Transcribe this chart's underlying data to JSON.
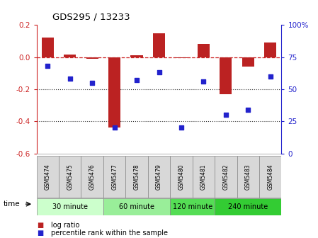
{
  "title": "GDS295 / 13233",
  "samples": [
    "GSM5474",
    "GSM5475",
    "GSM5476",
    "GSM5477",
    "GSM5478",
    "GSM5479",
    "GSM5480",
    "GSM5481",
    "GSM5482",
    "GSM5483",
    "GSM5484"
  ],
  "log_ratio": [
    0.12,
    0.015,
    -0.01,
    -0.44,
    0.01,
    0.15,
    -0.005,
    0.08,
    -0.23,
    -0.06,
    0.09
  ],
  "percentile": [
    68,
    58,
    55,
    20,
    57,
    63,
    20,
    56,
    30,
    34,
    60
  ],
  "bar_color": "#bb2222",
  "dot_color": "#2222cc",
  "ylim_left": [
    -0.6,
    0.2
  ],
  "ylim_right": [
    0,
    100
  ],
  "yticks_left": [
    -0.6,
    -0.4,
    -0.2,
    0.0,
    0.2
  ],
  "yticks_right": [
    0,
    25,
    50,
    75,
    100
  ],
  "groups": [
    {
      "label": "30 minute",
      "start": 0,
      "end": 3,
      "color": "#ccffcc"
    },
    {
      "label": "60 minute",
      "start": 3,
      "end": 6,
      "color": "#99ee99"
    },
    {
      "label": "120 minute",
      "start": 6,
      "end": 8,
      "color": "#55dd55"
    },
    {
      "label": "240 minute",
      "start": 8,
      "end": 11,
      "color": "#33cc33"
    }
  ],
  "time_label": "time",
  "legend_log": "log ratio",
  "legend_pct": "percentile rank within the sample",
  "hline_color": "#cc2222",
  "dotted_color": "#333333",
  "background_color": "#ffffff",
  "sample_box_color": "#d8d8d8",
  "sample_box_edge": "#888888"
}
